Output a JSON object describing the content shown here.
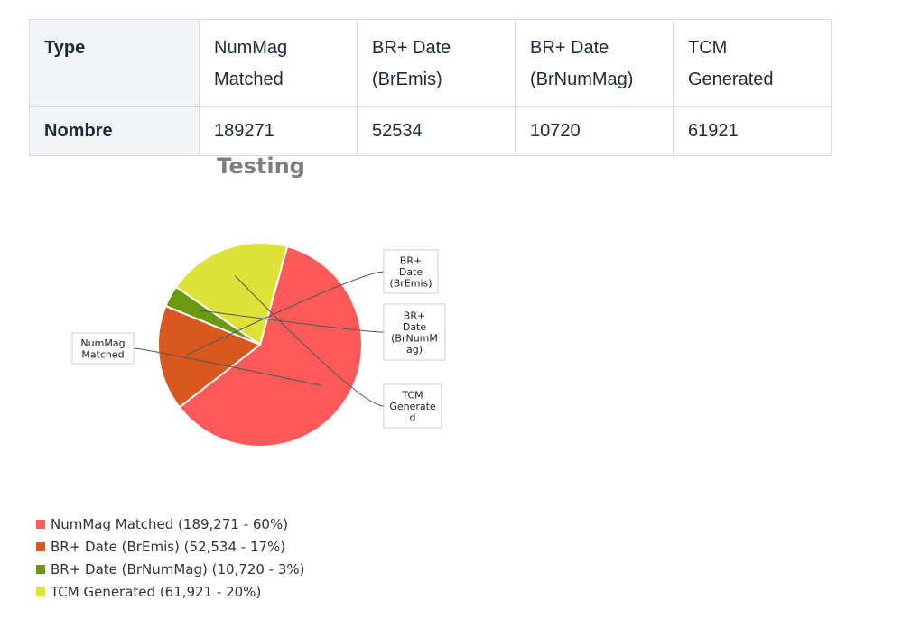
{
  "table": {
    "headers": [
      "Type",
      "NumMag\nMatched",
      "BR+ Date\n(BrEmis)",
      "BR+ Date\n(BrNumMag)",
      "TCM Generated"
    ],
    "row_label": "Nombre",
    "values": [
      "189271",
      "52534",
      "10720",
      "61921"
    ]
  },
  "chart_data": {
    "type": "pie",
    "title": "Testing",
    "legend_position": "bottom-left",
    "slices": [
      {
        "name": "NumMag Matched",
        "value": 189271,
        "percent": 60,
        "color": "#ff5a5a",
        "callout": [
          "NumMag",
          "Matched"
        ],
        "legend": "NumMag Matched (189,271 - 60%)"
      },
      {
        "name": "BR+ Date (BrEmis)",
        "value": 52534,
        "percent": 17,
        "color": "#d8581f",
        "callout": [
          "BR+",
          "Date",
          "(BrEmis)"
        ],
        "legend": "BR+ Date (BrEmis) (52,534 - 17%)"
      },
      {
        "name": "BR+ Date (BrNumMag)",
        "value": 10720,
        "percent": 3,
        "color": "#6b9a10",
        "callout": [
          "BR+",
          "Date",
          "(BrNumM",
          "ag)"
        ],
        "legend": "BR+ Date (BrNumMag) (10,720 - 3%)"
      },
      {
        "name": "TCM Generated",
        "value": 61921,
        "percent": 20,
        "color": "#dee237",
        "callout": [
          "TCM",
          "Generate",
          "d"
        ],
        "legend": "TCM Generated (61,921 - 20%)"
      }
    ]
  }
}
